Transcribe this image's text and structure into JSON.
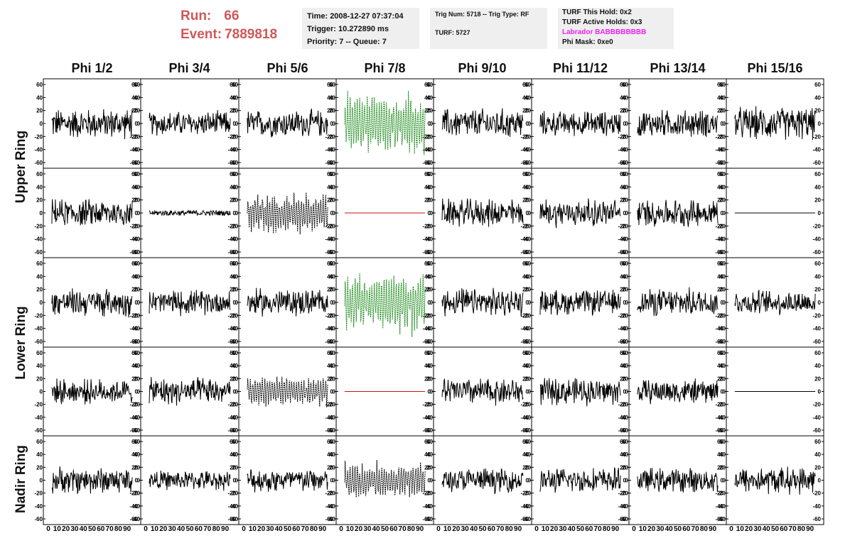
{
  "header": {
    "run_label": "Run:",
    "run_value": "66",
    "event_label": "Event:",
    "event_value": "7889818",
    "time": "Time: 2008-12-27 07:37:04",
    "trigger": "Trigger: 10.272890 ms",
    "priority": "Priority: 7 -- Queue: 7",
    "trig_num": "Trig Num: 5718 -- Trig Type: RF",
    "turf": "TURF: 5727",
    "turf_this_hold": "TURF This Hold: 0x2",
    "turf_active_holds": "TURF Active Holds: 0x3",
    "labrador": "Labrador BABBBBBBBB",
    "phi_mask": "Phi Mask: 0xe0"
  },
  "columns": [
    "Phi 1/2",
    "Phi 3/4",
    "Phi 5/6",
    "Phi 7/8",
    "Phi 9/10",
    "Phi 11/12",
    "Phi 13/14",
    "Phi 15/16"
  ],
  "ring_labels": [
    "Upper Ring",
    "Lower Ring",
    "Nadir Ring"
  ],
  "colors": {
    "run_text": "#cf5858",
    "labrador_text": "#ee22ee",
    "trace_normal": "#000000",
    "trace_green": "#1d8a1d",
    "trace_flat_red": "#cc1111",
    "info_box_bg": "#efefef"
  },
  "chart_data": {
    "type": "line",
    "x_range": [
      0,
      100
    ],
    "y_range": [
      -60,
      60
    ],
    "x_ticks": [
      0,
      10,
      20,
      30,
      40,
      50,
      60,
      70,
      80,
      90
    ],
    "y_ticks": [
      -60,
      -40,
      -20,
      0,
      20,
      40,
      60
    ],
    "rows": [
      "Upper Ring",
      "Upper Ring",
      "Lower Ring",
      "Lower Ring",
      "Nadir Ring"
    ],
    "panels": [
      [
        {
          "style": "noise",
          "amp": 22
        },
        {
          "style": "noise",
          "amp": 18
        },
        {
          "style": "noise",
          "amp": 20
        },
        {
          "style": "green",
          "amp": 45
        },
        {
          "style": "noise",
          "amp": 22
        },
        {
          "style": "noise",
          "amp": 18
        },
        {
          "style": "noise",
          "amp": 20
        },
        {
          "style": "noise",
          "amp": 24
        }
      ],
      [
        {
          "style": "noise",
          "amp": 20
        },
        {
          "style": "flat-noise",
          "amp": 4
        },
        {
          "style": "dashed",
          "amp": 30
        },
        {
          "style": "flat-red",
          "amp": 0
        },
        {
          "style": "noise",
          "amp": 20
        },
        {
          "style": "noise",
          "amp": 20
        },
        {
          "style": "noise",
          "amp": 20
        },
        {
          "style": "flat",
          "amp": 0
        }
      ],
      [
        {
          "style": "noise",
          "amp": 20
        },
        {
          "style": "noise",
          "amp": 18
        },
        {
          "style": "noise",
          "amp": 20
        },
        {
          "style": "green",
          "amp": 45
        },
        {
          "style": "noise",
          "amp": 20
        },
        {
          "style": "noise",
          "amp": 18
        },
        {
          "style": "noise",
          "amp": 20
        },
        {
          "style": "noise",
          "amp": 18
        }
      ],
      [
        {
          "style": "noise",
          "amp": 18
        },
        {
          "style": "noise",
          "amp": 20
        },
        {
          "style": "dashed",
          "amp": 22
        },
        {
          "style": "flat-red",
          "amp": 0
        },
        {
          "style": "noise",
          "amp": 20
        },
        {
          "style": "noise",
          "amp": 20
        },
        {
          "style": "noise",
          "amp": 18
        },
        {
          "style": "flat",
          "amp": 0
        }
      ],
      [
        {
          "style": "noise",
          "amp": 20
        },
        {
          "style": "noise",
          "amp": 14
        },
        {
          "style": "noise",
          "amp": 18
        },
        {
          "style": "dashed",
          "amp": 28
        },
        {
          "style": "noise",
          "amp": 18
        },
        {
          "style": "noise",
          "amp": 18
        },
        {
          "style": "noise",
          "amp": 18
        },
        {
          "style": "noise",
          "amp": 20
        }
      ]
    ]
  }
}
